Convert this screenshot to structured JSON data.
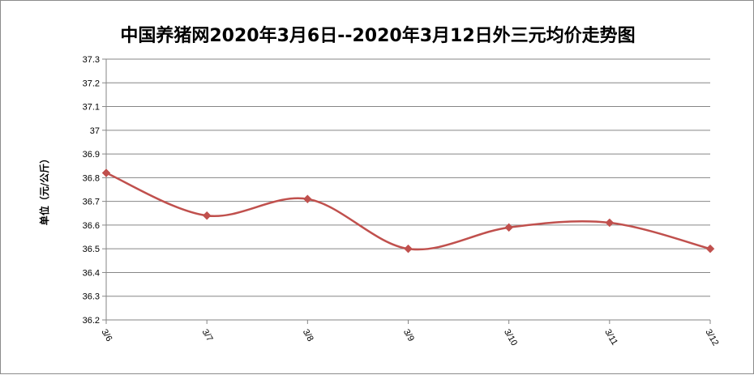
{
  "chart_data": {
    "type": "line",
    "title": "中国养猪网2020年3月6日--2020年3月12日外三元均价走势图",
    "ylabel": "单位（元/公斤）",
    "xlabel": "",
    "categories": [
      "3/6",
      "3/7",
      "3/8",
      "3/9",
      "3/10",
      "3/11",
      "3/12"
    ],
    "series": [
      {
        "values": [
          36.82,
          36.64,
          36.71,
          36.5,
          36.59,
          36.61,
          36.5
        ]
      }
    ],
    "ylim": [
      36.2,
      37.3
    ],
    "yticks": [
      "36.2",
      "36.3",
      "36.4",
      "36.5",
      "36.6",
      "36.7",
      "36.8",
      "36.9",
      "37",
      "37.1",
      "37.2",
      "37.3"
    ],
    "grid": true,
    "legend": "none",
    "line_color": "#c0504d",
    "smooth": true
  }
}
